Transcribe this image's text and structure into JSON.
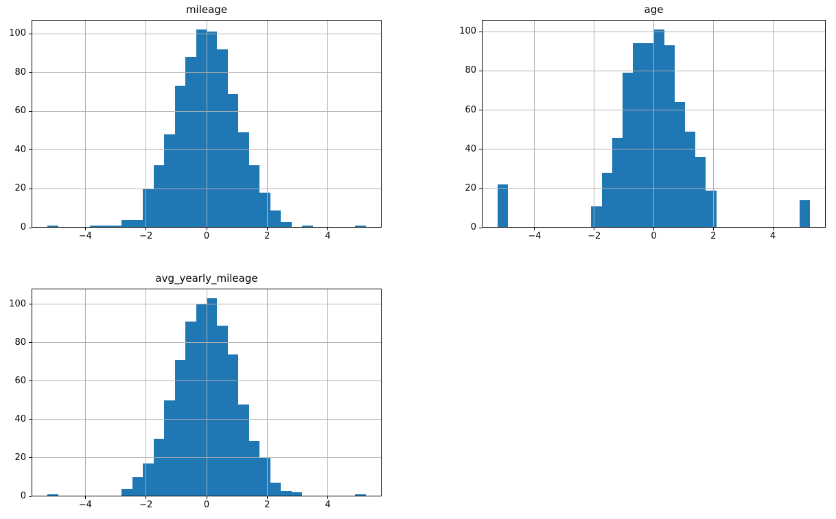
{
  "figure": {
    "background": "#ffffff",
    "bar_color": "#1f77b4",
    "grid_color": "#b0b0b0",
    "spine_color": "#000000",
    "text_color": "#000000"
  },
  "chart_data": [
    {
      "type": "bar",
      "title": "mileage",
      "xlabel": "",
      "ylabel": "",
      "grid": true,
      "legend": "none",
      "bins": {
        "start": -5.25,
        "width": 0.35,
        "count": 30,
        "range": [
          -5.25,
          5.25
        ]
      },
      "counts": [
        1,
        0,
        0,
        0,
        1,
        1,
        1,
        4,
        4,
        20,
        32,
        48,
        73,
        88,
        102,
        101,
        92,
        69,
        49,
        32,
        18,
        9,
        3,
        0,
        1,
        0,
        0,
        0,
        0,
        1
      ],
      "xticks": [
        -4,
        -2,
        0,
        2,
        4
      ],
      "yticks": [
        0,
        20,
        40,
        60,
        80,
        100
      ],
      "xlim": [
        -5.775,
        5.775
      ],
      "ylim": [
        0,
        107.1
      ]
    },
    {
      "type": "bar",
      "title": "age",
      "xlabel": "",
      "ylabel": "",
      "grid": true,
      "legend": "none",
      "bins": {
        "start": -5.25,
        "width": 0.35,
        "count": 30,
        "range": [
          -5.25,
          5.25
        ]
      },
      "counts": [
        22,
        0,
        0,
        0,
        0,
        0,
        0,
        0,
        0,
        11,
        28,
        46,
        79,
        94,
        94,
        101,
        93,
        64,
        49,
        36,
        19,
        0,
        0,
        0,
        0,
        0,
        0,
        0,
        0,
        14
      ],
      "xticks": [
        -4,
        -2,
        0,
        2,
        4
      ],
      "yticks": [
        0,
        20,
        40,
        60,
        80,
        100
      ],
      "xlim": [
        -5.775,
        5.775
      ],
      "ylim": [
        0,
        106.05
      ]
    },
    {
      "type": "bar",
      "title": "avg_yearly_mileage",
      "xlabel": "",
      "ylabel": "",
      "grid": true,
      "legend": "none",
      "bins": {
        "start": -5.25,
        "width": 0.35,
        "count": 30,
        "range": [
          -5.25,
          5.25
        ]
      },
      "counts": [
        1,
        0,
        0,
        0,
        0,
        0,
        0,
        4,
        10,
        17,
        30,
        50,
        71,
        91,
        100,
        103,
        89,
        74,
        48,
        29,
        20,
        7,
        3,
        2,
        0,
        0,
        0,
        0,
        0,
        1
      ],
      "xticks": [
        -4,
        -2,
        0,
        2,
        4
      ],
      "yticks": [
        0,
        20,
        40,
        60,
        80,
        100
      ],
      "xlim": [
        -5.775,
        5.775
      ],
      "ylim": [
        0,
        108.15
      ]
    }
  ]
}
